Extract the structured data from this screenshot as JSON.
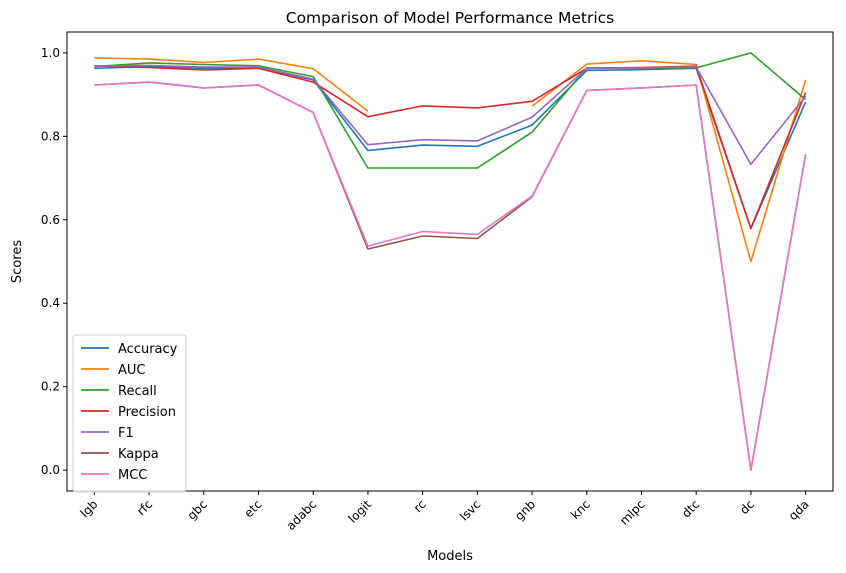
{
  "chart_data": {
    "type": "line",
    "title": "Comparison of Model Performance Metrics",
    "xlabel": "Models",
    "ylabel": "Scores",
    "categories": [
      "lgb",
      "rfc",
      "gbc",
      "etc",
      "adabc",
      "logit",
      "rc",
      "lsvc",
      "gnb",
      "knc",
      "mlpc",
      "dtc",
      "dc",
      "qda"
    ],
    "ylim": [
      -0.05,
      1.05
    ],
    "yticks": [
      "0.0",
      "0.2",
      "0.4",
      "0.6",
      "0.8",
      "1.0"
    ],
    "grid": false,
    "legend_position": "lower-left",
    "series": [
      {
        "name": "Accuracy",
        "color": "#1f77b4",
        "values": [
          0.963,
          0.967,
          0.963,
          0.965,
          0.935,
          0.766,
          0.779,
          0.776,
          0.827,
          0.958,
          0.96,
          0.963,
          0.579,
          0.882
        ]
      },
      {
        "name": "AUC",
        "color": "#ff7f0e",
        "values": [
          0.988,
          0.985,
          0.977,
          0.985,
          0.962,
          0.86,
          null,
          null,
          0.872,
          0.973,
          0.981,
          0.972,
          0.5,
          0.935
        ]
      },
      {
        "name": "Recall",
        "color": "#2ca02c",
        "values": [
          0.967,
          0.976,
          0.972,
          0.969,
          0.943,
          0.724,
          0.724,
          0.724,
          0.81,
          0.964,
          0.964,
          0.964,
          1.0,
          0.888
        ]
      },
      {
        "name": "Precision",
        "color": "#d62728",
        "values": [
          0.969,
          0.965,
          0.959,
          0.963,
          0.93,
          0.847,
          0.873,
          0.868,
          0.884,
          0.963,
          0.965,
          0.968,
          0.579,
          0.905
        ]
      },
      {
        "name": "F1",
        "color": "#9467bd",
        "values": [
          0.968,
          0.97,
          0.966,
          0.966,
          0.937,
          0.78,
          0.792,
          0.789,
          0.846,
          0.963,
          0.964,
          0.966,
          0.733,
          0.896
        ]
      },
      {
        "name": "Kappa",
        "color": "#8c564b",
        "values": [
          0.923,
          0.93,
          0.916,
          0.923,
          0.857,
          0.53,
          0.561,
          0.555,
          0.655,
          0.91,
          0.916,
          0.923,
          0.0,
          0.757
        ]
      },
      {
        "name": "MCC",
        "color": "#e377c2",
        "values": [
          0.923,
          0.93,
          0.916,
          0.923,
          0.857,
          0.537,
          0.572,
          0.565,
          0.657,
          0.91,
          0.916,
          0.923,
          0.0,
          0.757
        ]
      }
    ]
  }
}
